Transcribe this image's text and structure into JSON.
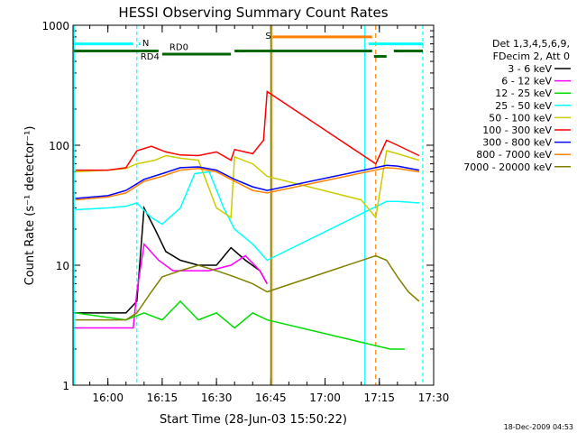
{
  "chart_data": {
    "type": "line",
    "title": "HESSI Observing Summary Count Rates",
    "xlabel": "Start Time (28-Jun-03 15:50:22)",
    "ylabel": "Count Rate (s⁻¹ detector⁻¹)",
    "x_scale": "time",
    "y_scale": "log",
    "xlim": [
      "15:50:22",
      "17:30"
    ],
    "ylim": [
      1,
      1000
    ],
    "xticks": [
      "16:00",
      "16:15",
      "16:30",
      "16:45",
      "17:00",
      "17:15",
      "17:30"
    ],
    "yticks": [
      1,
      10,
      100,
      1000
    ],
    "ytick_labels": [
      "1",
      "10",
      "100",
      "1000"
    ],
    "legend_header": [
      "Det 1,3,4,5,6,9,",
      "FDecim 2, Att 0"
    ],
    "legend_position": "right",
    "series": [
      {
        "name": "3 - 6 keV",
        "color": "#000000",
        "x": [
          "15:51",
          "16:05",
          "16:08",
          "16:10",
          "16:13",
          "16:16",
          "16:20",
          "16:25",
          "16:30",
          "16:34",
          "16:38",
          "16:42",
          "16:44"
        ],
        "y": [
          4,
          4,
          5,
          30,
          20,
          13,
          11,
          10,
          10,
          14,
          11,
          9,
          7
        ]
      },
      {
        "name": "6 - 12 keV",
        "color": "#ff00ff",
        "x": [
          "15:51",
          "16:07",
          "16:08",
          "16:10",
          "16:14",
          "16:18",
          "16:22",
          "16:28",
          "16:34",
          "16:38",
          "16:42",
          "16:44"
        ],
        "y": [
          3,
          3,
          6,
          15,
          11,
          9,
          9,
          9,
          10,
          12,
          9,
          7
        ]
      },
      {
        "name": "12 - 25 keV",
        "color": "#00dd00",
        "x": [
          "15:51",
          "16:05",
          "16:10",
          "16:15",
          "16:20",
          "16:25",
          "16:30",
          "16:35",
          "16:40",
          "16:44",
          "17:18",
          "17:20",
          "17:22"
        ],
        "y": [
          4,
          3.5,
          4,
          3.5,
          5,
          3.5,
          4,
          3,
          4,
          3.5,
          2,
          2,
          2
        ]
      },
      {
        "name": "25 - 50 keV",
        "color": "#00ffff",
        "x": [
          "15:51",
          "16:00",
          "16:05",
          "16:08",
          "16:12",
          "16:15",
          "16:20",
          "16:24",
          "16:28",
          "16:32",
          "16:35",
          "16:40",
          "16:44",
          "17:17",
          "17:20",
          "17:26"
        ],
        "y": [
          29,
          30,
          31,
          33,
          25,
          22,
          30,
          58,
          60,
          30,
          20,
          15,
          11,
          34,
          34,
          33
        ]
      },
      {
        "name": "50 - 100 keV",
        "color": "#cccc00",
        "x": [
          "15:51",
          "16:00",
          "16:05",
          "16:08",
          "16:13",
          "16:16",
          "16:20",
          "16:25",
          "16:30",
          "16:34",
          "16:35",
          "16:40",
          "16:44",
          "17:10",
          "17:14",
          "17:17",
          "17:20",
          "17:26"
        ],
        "y": [
          60,
          62,
          64,
          70,
          75,
          82,
          78,
          75,
          30,
          25,
          80,
          70,
          55,
          35,
          25,
          90,
          85,
          75
        ]
      },
      {
        "name": "100 - 300 keV",
        "color": "#ff0000",
        "x": [
          "15:51",
          "16:00",
          "16:05",
          "16:08",
          "16:12",
          "16:16",
          "16:20",
          "16:25",
          "16:30",
          "16:34",
          "16:35",
          "16:40",
          "16:43",
          "16:44",
          "17:14",
          "17:17",
          "17:20",
          "17:26"
        ],
        "y": [
          62,
          62,
          65,
          90,
          98,
          88,
          83,
          82,
          88,
          75,
          92,
          85,
          110,
          280,
          70,
          110,
          100,
          82
        ]
      },
      {
        "name": "300 - 800 keV",
        "color": "#0000ff",
        "x": [
          "15:51",
          "16:00",
          "16:05",
          "16:10",
          "16:15",
          "16:20",
          "16:25",
          "16:30",
          "16:35",
          "16:40",
          "16:44",
          "17:17",
          "17:20",
          "17:26"
        ],
        "y": [
          36,
          38,
          42,
          52,
          58,
          65,
          66,
          62,
          52,
          45,
          42,
          68,
          67,
          62
        ]
      },
      {
        "name": "800 - 7000 keV",
        "color": "#ff8000",
        "x": [
          "15:51",
          "16:00",
          "16:05",
          "16:10",
          "16:15",
          "16:20",
          "16:25",
          "16:30",
          "16:35",
          "16:40",
          "16:44",
          "17:17",
          "17:20",
          "17:26"
        ],
        "y": [
          35,
          37,
          40,
          50,
          55,
          62,
          64,
          60,
          50,
          42,
          40,
          65,
          64,
          60
        ]
      },
      {
        "name": "7000 - 20000 keV",
        "color": "#808000",
        "x": [
          "15:51",
          "16:05",
          "16:08",
          "16:12",
          "16:15",
          "16:20",
          "16:25",
          "16:30",
          "16:35",
          "16:40",
          "16:44",
          "17:14",
          "17:17",
          "17:20",
          "17:23",
          "17:26"
        ],
        "y": [
          3.5,
          3.5,
          4,
          6,
          8,
          9,
          10,
          9,
          8,
          7,
          6,
          12,
          11,
          8,
          6,
          5
        ]
      }
    ],
    "annotations": [
      {
        "label": "N",
        "color": "#00ffff"
      },
      {
        "label": "RD0",
        "color": "#006600"
      },
      {
        "label": "RD4",
        "color": "#006600"
      },
      {
        "label": "S",
        "color": "#ff8000"
      }
    ]
  },
  "footer": {
    "timestamp": "18-Dec-2009 04:53"
  }
}
